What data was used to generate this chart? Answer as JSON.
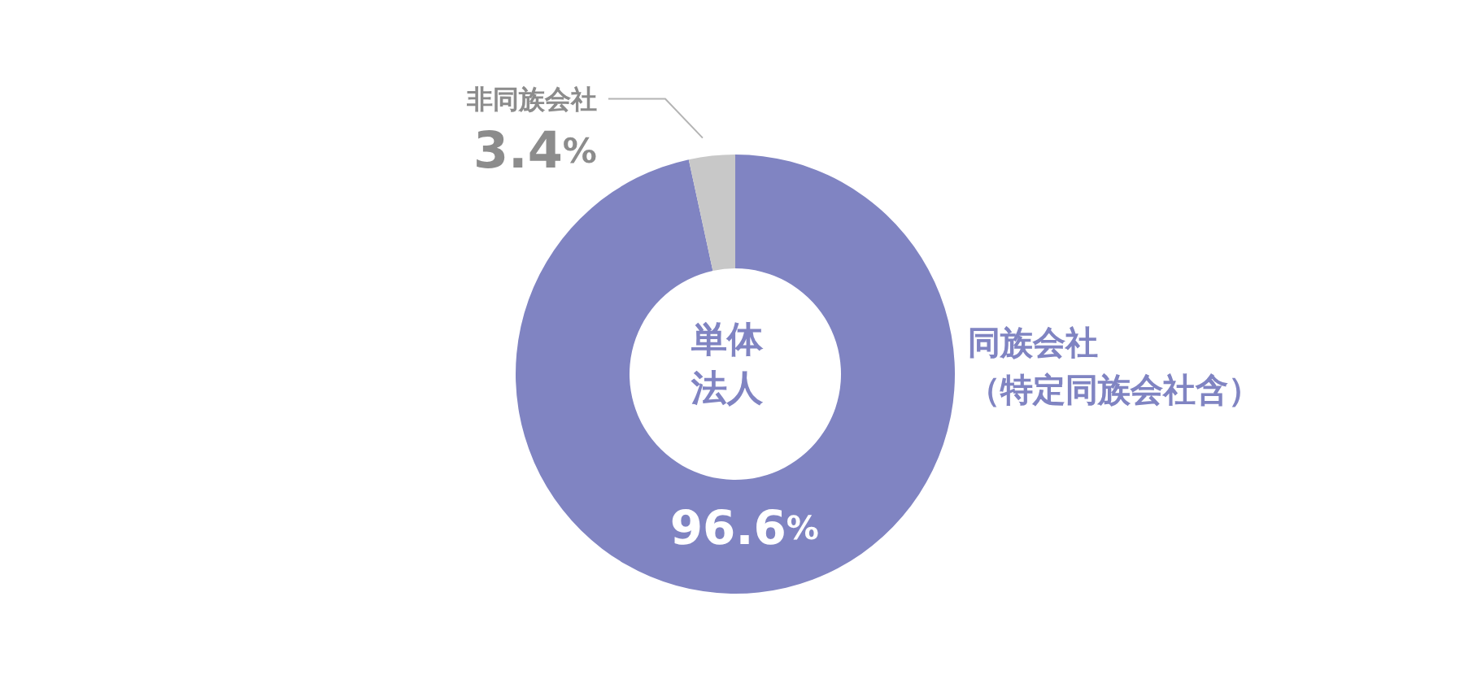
{
  "chart_data": {
    "type": "donut",
    "title": "単体法人",
    "categories": [
      "同族会社（特定同族会社含）",
      "非同族会社"
    ],
    "values": [
      96.6,
      3.4
    ],
    "colors": [
      "#8084c2",
      "#c8c8c8"
    ],
    "value_labels": [
      "96.6%",
      "3.4%"
    ]
  }
}
